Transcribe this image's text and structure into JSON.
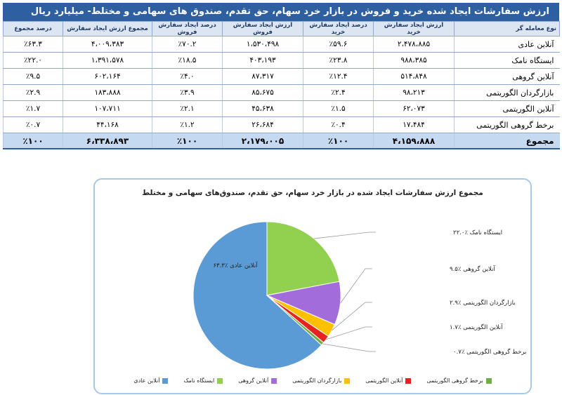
{
  "table": {
    "title": "ارزش سفارشات ایجاد شده خرید و فروش در بازار خرد سهام، حق تقدم، صندوق های سهامی و مختلط- میلیارد ریال",
    "headers": [
      "نوع معامله گر",
      "ارزش ایجاد سفارش خرید",
      "درصد ایجاد سفارش خرید",
      "ارزش ایجاد سفارش فروش",
      "درصد ایجاد سفارش فروش",
      "مجموع ارزش ایجاد سفارش",
      "درصد مجموع"
    ],
    "rows": [
      [
        "آنلاین عادی",
        "۲،۴۷۸،۸۸۵",
        "٪۵۹.۶",
        "۱،۵۳۰،۴۹۸",
        "٪۷۰.۲",
        "۴،۰۰۹،۳۸۳",
        "٪۶۳.۳"
      ],
      [
        "ایستگاه نامک",
        "۹۸۸،۳۸۵",
        "٪۲۳.۸",
        "۴۰۳،۱۹۳",
        "٪۱۸.۵",
        "۱،۳۹۱،۵۷۸",
        "٪۲۲.۰"
      ],
      [
        "آنلاین گروهی",
        "۵۱۴،۸۴۸",
        "٪۱۲.۴",
        "۸۷،۳۱۷",
        "٪۴.۰",
        "۶۰۲،۱۶۴",
        "٪۹.۵"
      ],
      [
        "بازارگردان الگوریتمی",
        "۹۸،۲۱۳",
        "٪۲.۴",
        "۸۵،۶۷۵",
        "٪۳.۹",
        "۱۸۳،۸۸۸",
        "٪۲.۹"
      ],
      [
        "آنلاین الگوریتمی",
        "۶۲،۰۷۳",
        "٪۱.۵",
        "۴۵،۶۳۸",
        "٪۲.۱",
        "۱۰۷،۷۱۱",
        "٪۱.۷"
      ],
      [
        "برخط گروهی الگوریتمی",
        "۱۷،۴۸۴",
        "٪۰.۴",
        "۲۶،۶۸۴",
        "٪۱.۲",
        "۴۴،۱۶۸",
        "٪۰.۷"
      ]
    ],
    "total": [
      "مجموع",
      "۴،۱۵۹،۸۸۸",
      "٪۱۰۰",
      "۲،۱۷۹،۰۰۵",
      "٪۱۰۰",
      "۶،۳۳۸،۸۹۳",
      "٪۱۰۰"
    ]
  },
  "chart_data": {
    "type": "pie",
    "title": "مجموع ارزش سفارشات ایجاد شده در بازار خرد سهام، حق تقدم، صندوق‌های سهامی و مختلط",
    "categories": [
      "آنلاین عادی",
      "ایستگاه نامک",
      "آنلاین گروهی",
      "بازارگردان الگوریتمی",
      "آنلاین الگوریتمی",
      "برخط گروهی الگوریتمی"
    ],
    "values": [
      63.3,
      22.0,
      9.5,
      2.9,
      1.7,
      0.7
    ],
    "colors": [
      "#5b9bd5",
      "#92d050",
      "#a26ddb",
      "#ffc000",
      "#e6231e",
      "#70ad47"
    ],
    "data_labels": [
      "آنلاین عادی ٪۶۳.۳",
      "ایستگاه نامک ٪۲۲.۰",
      "آنلاین گروهی ٪۹.۵",
      "بازارگردان الگوریتمی ٪۲.۹",
      "آنلاین الگوریتمی ٪۱.۷",
      "برخط گروهی الگوریتمی ٪۰.۷"
    ],
    "legend_placement": "bottom"
  }
}
